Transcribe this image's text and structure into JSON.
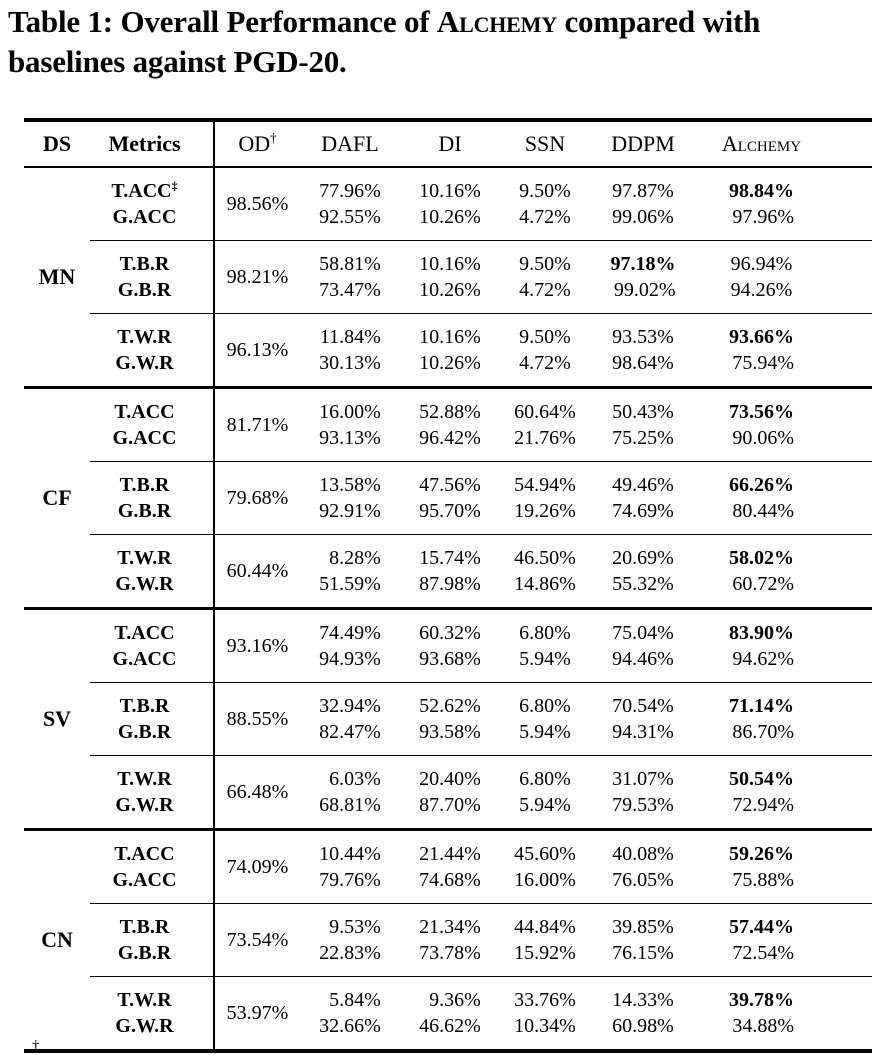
{
  "title": {
    "prefix": "Table 1: Overall Performance of ",
    "alchemy": "Alchemy",
    "suffix": " compared with baselines against PGD-20."
  },
  "footnote_mark": "†",
  "table": {
    "columns": [
      {
        "key": "ds",
        "label": "DS",
        "bold": true
      },
      {
        "key": "metrics",
        "label": "Metrics",
        "bold": true
      },
      {
        "key": "od",
        "label": "OD",
        "sup": "†"
      },
      {
        "key": "dafl",
        "label": "DAFL"
      },
      {
        "key": "di",
        "label": "DI"
      },
      {
        "key": "ssn",
        "label": "SSN"
      },
      {
        "key": "ddpm",
        "label": "DDPM"
      },
      {
        "key": "alchemy",
        "label": "Alchemy",
        "smallcaps": true
      }
    ],
    "method_columns": [
      "DAFL",
      "DI",
      "SSN",
      "DDPM",
      "Alchemy"
    ],
    "groups": [
      {
        "ds": "MN",
        "pairs": [
          {
            "m": [
              "T.ACC",
              "G.ACC"
            ],
            "msup": [
              "‡",
              ""
            ],
            "od": "98.56%",
            "vals": [
              [
                "77.96%",
                "92.55%"
              ],
              [
                "10.16%",
                "10.26%"
              ],
              [
                "9.50%",
                "4.72%"
              ],
              [
                "97.87%",
                "99.06%"
              ],
              [
                "98.84%",
                "97.96%"
              ]
            ],
            "bold": [
              [
                4,
                0
              ]
            ]
          },
          {
            "m": [
              "T.B.R",
              "G.B.R"
            ],
            "msup": [
              "",
              ""
            ],
            "od": "98.21%",
            "vals": [
              [
                "58.81%",
                "73.47%"
              ],
              [
                "10.16%",
                "10.26%"
              ],
              [
                "9.50%",
                "4.72%"
              ],
              [
                "97.18%",
                "99.02%"
              ],
              [
                "96.94%",
                "94.26%"
              ]
            ],
            "bold": [
              [
                3,
                0
              ]
            ]
          },
          {
            "m": [
              "T.W.R",
              "G.W.R"
            ],
            "msup": [
              "",
              ""
            ],
            "od": "96.13%",
            "vals": [
              [
                "11.84%",
                "30.13%"
              ],
              [
                "10.16%",
                "10.26%"
              ],
              [
                "9.50%",
                "4.72%"
              ],
              [
                "93.53%",
                "98.64%"
              ],
              [
                "93.66%",
                "75.94%"
              ]
            ],
            "bold": [
              [
                4,
                0
              ]
            ]
          }
        ]
      },
      {
        "ds": "CF",
        "pairs": [
          {
            "m": [
              "T.ACC",
              "G.ACC"
            ],
            "msup": [
              "",
              ""
            ],
            "od": "81.71%",
            "vals": [
              [
                "16.00%",
                "93.13%"
              ],
              [
                "52.88%",
                "96.42%"
              ],
              [
                "60.64%",
                "21.76%"
              ],
              [
                "50.43%",
                "75.25%"
              ],
              [
                "73.56%",
                "90.06%"
              ]
            ],
            "bold": [
              [
                4,
                0
              ]
            ]
          },
          {
            "m": [
              "T.B.R",
              "G.B.R"
            ],
            "msup": [
              "",
              ""
            ],
            "od": "79.68%",
            "vals": [
              [
                "13.58%",
                "92.91%"
              ],
              [
                "47.56%",
                "95.70%"
              ],
              [
                "54.94%",
                "19.26%"
              ],
              [
                "49.46%",
                "74.69%"
              ],
              [
                "66.26%",
                "80.44%"
              ]
            ],
            "bold": [
              [
                4,
                0
              ]
            ]
          },
          {
            "m": [
              "T.W.R",
              "G.W.R"
            ],
            "msup": [
              "",
              ""
            ],
            "od": "60.44%",
            "vals": [
              [
                "8.28%",
                "51.59%"
              ],
              [
                "15.74%",
                "87.98%"
              ],
              [
                "46.50%",
                "14.86%"
              ],
              [
                "20.69%",
                "55.32%"
              ],
              [
                "58.02%",
                "60.72%"
              ]
            ],
            "bold": [
              [
                4,
                0
              ]
            ]
          }
        ]
      },
      {
        "ds": "SV",
        "pairs": [
          {
            "m": [
              "T.ACC",
              "G.ACC"
            ],
            "msup": [
              "",
              ""
            ],
            "od": "93.16%",
            "vals": [
              [
                "74.49%",
                "94.93%"
              ],
              [
                "60.32%",
                "93.68%"
              ],
              [
                "6.80%",
                "5.94%"
              ],
              [
                "75.04%",
                "94.46%"
              ],
              [
                "83.90%",
                "94.62%"
              ]
            ],
            "bold": [
              [
                4,
                0
              ]
            ]
          },
          {
            "m": [
              "T.B.R",
              "G.B.R"
            ],
            "msup": [
              "",
              ""
            ],
            "od": "88.55%",
            "vals": [
              [
                "32.94%",
                "82.47%"
              ],
              [
                "52.62%",
                "93.58%"
              ],
              [
                "6.80%",
                "5.94%"
              ],
              [
                "70.54%",
                "94.31%"
              ],
              [
                "71.14%",
                "86.70%"
              ]
            ],
            "bold": [
              [
                4,
                0
              ]
            ]
          },
          {
            "m": [
              "T.W.R",
              "G.W.R"
            ],
            "msup": [
              "",
              ""
            ],
            "od": "66.48%",
            "vals": [
              [
                "6.03%",
                "68.81%"
              ],
              [
                "20.40%",
                "87.70%"
              ],
              [
                "6.80%",
                "5.94%"
              ],
              [
                "31.07%",
                "79.53%"
              ],
              [
                "50.54%",
                "72.94%"
              ]
            ],
            "bold": [
              [
                4,
                0
              ]
            ]
          }
        ]
      },
      {
        "ds": "CN",
        "pairs": [
          {
            "m": [
              "T.ACC",
              "G.ACC"
            ],
            "msup": [
              "",
              ""
            ],
            "od": "74.09%",
            "vals": [
              [
                "10.44%",
                "79.76%"
              ],
              [
                "21.44%",
                "74.68%"
              ],
              [
                "45.60%",
                "16.00%"
              ],
              [
                "40.08%",
                "76.05%"
              ],
              [
                "59.26%",
                "75.88%"
              ]
            ],
            "bold": [
              [
                4,
                0
              ]
            ]
          },
          {
            "m": [
              "T.B.R",
              "G.B.R"
            ],
            "msup": [
              "",
              ""
            ],
            "od": "73.54%",
            "vals": [
              [
                "9.53%",
                "22.83%"
              ],
              [
                "21.34%",
                "73.78%"
              ],
              [
                "44.84%",
                "15.92%"
              ],
              [
                "39.85%",
                "76.15%"
              ],
              [
                "57.44%",
                "72.54%"
              ]
            ],
            "bold": [
              [
                4,
                0
              ]
            ]
          },
          {
            "m": [
              "T.W.R",
              "G.W.R"
            ],
            "msup": [
              "",
              ""
            ],
            "od": "53.97%",
            "vals": [
              [
                "5.84%",
                "32.66%"
              ],
              [
                "9.36%",
                "46.62%"
              ],
              [
                "33.76%",
                "10.34%"
              ],
              [
                "14.33%",
                "60.98%"
              ],
              [
                "39.78%",
                "34.88%"
              ]
            ],
            "bold": [
              [
                4,
                0
              ]
            ]
          }
        ]
      }
    ]
  }
}
